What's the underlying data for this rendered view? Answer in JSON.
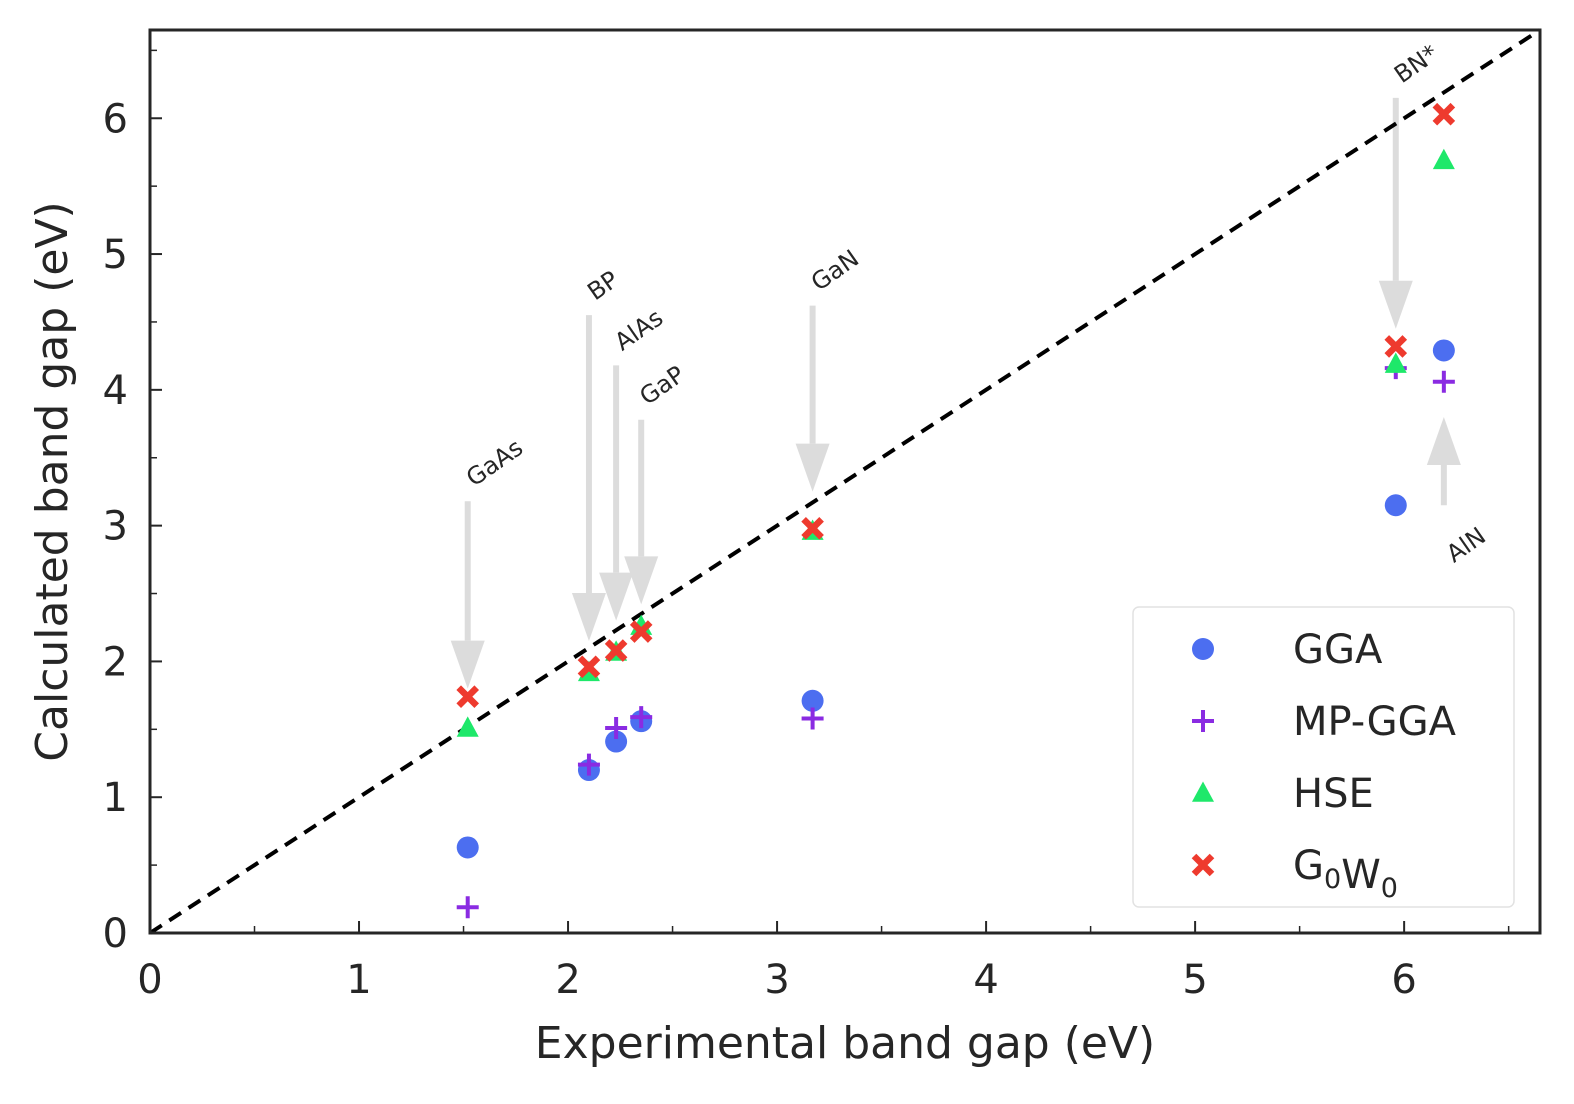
{
  "chart_data": {
    "type": "scatter",
    "xlabel": "Experimental band gap (eV)",
    "ylabel": "Calculated band gap (eV)",
    "xlim": [
      0,
      6.65
    ],
    "ylim": [
      0,
      6.65
    ],
    "xticks": [
      0,
      1,
      2,
      3,
      4,
      5,
      6
    ],
    "yticks": [
      0,
      1,
      2,
      3,
      4,
      5,
      6
    ],
    "grid": false,
    "legend_position": "bottom-right",
    "reference_line": "y = x",
    "series": [
      {
        "name": "GGA",
        "marker": "circle",
        "color": "#4c6ef0",
        "points": [
          [
            1.52,
            0.63
          ],
          [
            2.1,
            1.2
          ],
          [
            2.23,
            1.41
          ],
          [
            2.35,
            1.56
          ],
          [
            3.17,
            1.71
          ],
          [
            5.96,
            3.15
          ],
          [
            6.19,
            4.29
          ]
        ]
      },
      {
        "name": "MP-GGA",
        "marker": "plus",
        "color": "#8a2be2",
        "points": [
          [
            1.52,
            0.19
          ],
          [
            2.1,
            1.24
          ],
          [
            2.23,
            1.51
          ],
          [
            2.35,
            1.59
          ],
          [
            3.17,
            1.58
          ],
          [
            5.96,
            4.16
          ],
          [
            6.19,
            4.06
          ]
        ]
      },
      {
        "name": "HSE",
        "marker": "triangle",
        "color": "#1ee86a",
        "points": [
          [
            1.52,
            1.51
          ],
          [
            2.1,
            1.92
          ],
          [
            2.23,
            2.07
          ],
          [
            2.35,
            2.26
          ],
          [
            3.17,
            2.96
          ],
          [
            5.96,
            4.19
          ],
          [
            6.19,
            5.69
          ]
        ]
      },
      {
        "name": "G0W0",
        "marker": "x",
        "color": "#ee3a2e",
        "points": [
          [
            1.52,
            1.74
          ],
          [
            2.1,
            1.96
          ],
          [
            2.23,
            2.08
          ],
          [
            2.35,
            2.22
          ],
          [
            3.17,
            2.98
          ],
          [
            5.96,
            4.32
          ],
          [
            6.19,
            6.03
          ]
        ]
      }
    ],
    "annotations": [
      {
        "text": "GaAs",
        "x": 1.52,
        "arrow_from": 3.18,
        "arrow_to": 1.8
      },
      {
        "text": "BP",
        "x": 2.1,
        "arrow_from": 4.55,
        "arrow_to": 2.15
      },
      {
        "text": "AlAs",
        "x": 2.23,
        "arrow_from": 4.18,
        "arrow_to": 2.3
      },
      {
        "text": "GaP",
        "x": 2.35,
        "arrow_from": 3.78,
        "arrow_to": 2.42
      },
      {
        "text": "GaN",
        "x": 3.17,
        "arrow_from": 4.62,
        "arrow_to": 3.25
      },
      {
        "text": "BN*",
        "x": 5.96,
        "arrow_from": 6.15,
        "arrow_to": 4.45
      },
      {
        "text": "AlN",
        "x": 6.19,
        "arrow_from": 3.15,
        "arrow_to": 3.8
      }
    ]
  }
}
